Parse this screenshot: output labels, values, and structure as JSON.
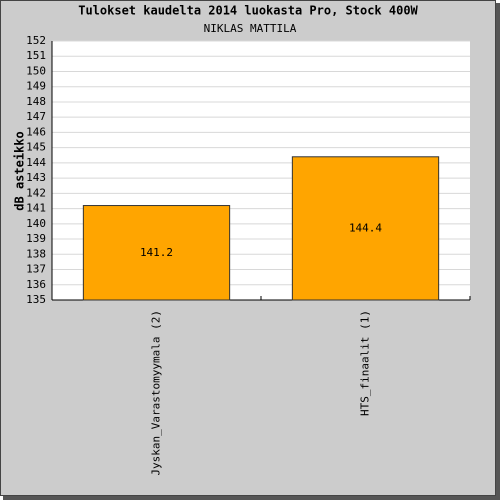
{
  "chart_data": {
    "type": "bar",
    "title": "Tulokset kaudelta 2014 luokasta Pro, Stock 400W",
    "subtitle": "NIKLAS MATTILA",
    "y_label": "dB asteikko",
    "categories": [
      "Jyskan_Varastomyymala (2)",
      "HTS_finaalit (1)"
    ],
    "values": [
      141.2,
      144.4
    ],
    "color": "#ffa500",
    "ylim": [
      135,
      152
    ],
    "yticks": [
      135,
      136,
      137,
      138,
      139,
      140,
      141,
      142,
      143,
      144,
      145,
      146,
      147,
      148,
      149,
      150,
      151,
      152
    ],
    "grid": true
  }
}
